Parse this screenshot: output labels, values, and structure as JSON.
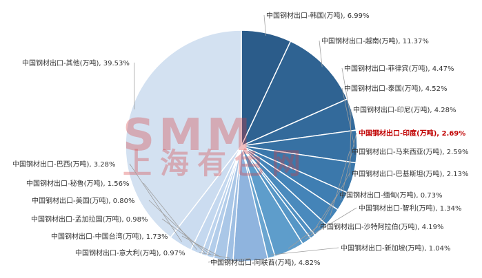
{
  "watermark": {
    "logo": "SMM",
    "text": "上海有色网"
  },
  "colors": {
    "highlight": "#c00000",
    "leader": "#9e9e9e"
  },
  "chart_data": {
    "type": "pie",
    "slices": [
      {
        "label": "中国钢材出口-韩国(万吨)",
        "value": 6.99,
        "display": "6.99%",
        "color": "#2b5c8a"
      },
      {
        "label": "中国钢材出口-越南(万吨)",
        "value": 11.37,
        "display": "11.37%",
        "color": "#2f6392"
      },
      {
        "label": "中国钢材出口-菲律宾(万吨)",
        "value": 4.47,
        "display": "4.47%",
        "color": "#336a9b"
      },
      {
        "label": "中国钢材出口-泰国(万吨)",
        "value": 4.52,
        "display": "4.52%",
        "color": "#3771a3"
      },
      {
        "label": "中国钢材出口-印尼(万吨)",
        "value": 4.28,
        "display": "4.28%",
        "color": "#3b78ab"
      },
      {
        "label": "中国钢材出口-印度(万吨)",
        "value": 2.69,
        "display": "2.69%",
        "color": "#3f7eb2",
        "highlight": true
      },
      {
        "label": "中国钢材出口-马来西亚(万吨)",
        "value": 2.59,
        "display": "2.59%",
        "color": "#4484b8"
      },
      {
        "label": "中国钢材出口-巴基斯坦(万吨)",
        "value": 2.13,
        "display": "2.13%",
        "color": "#4a8abd"
      },
      {
        "label": "中国钢材出口-缅甸(万吨)",
        "value": 0.73,
        "display": "0.73%",
        "color": "#5090c2"
      },
      {
        "label": "中国钢材出口-智利(万吨)",
        "value": 1.34,
        "display": "1.34%",
        "color": "#5696c6"
      },
      {
        "label": "中国钢材出口-沙特阿拉伯(万吨)",
        "value": 4.19,
        "display": "4.19%",
        "color": "#5e9dcb"
      },
      {
        "label": "中国钢材出口-新加坡(万吨)",
        "value": 1.04,
        "display": "1.04%",
        "color": "#6aa5d0"
      },
      {
        "label": "中国钢材出口-阿联酋(万吨)",
        "value": 4.82,
        "display": "4.82%",
        "color": "#8fb4de"
      },
      {
        "label": "中国钢材出口-意大利(万吨)",
        "value": 0.97,
        "display": "0.97%",
        "color": "#9fbfe3"
      },
      {
        "label": "中国钢材出口-中国台湾(万吨)",
        "value": 1.73,
        "display": "1.73%",
        "color": "#aac7e7"
      },
      {
        "label": "中国钢材出口-孟加拉国(万吨)",
        "value": 0.98,
        "display": "0.98%",
        "color": "#b3cdea"
      },
      {
        "label": "中国钢材出口-美国(万吨)",
        "value": 0.8,
        "display": "0.80%",
        "color": "#bcd3ed"
      },
      {
        "label": "中国钢材出口-秘鲁(万吨)",
        "value": 1.56,
        "display": "1.56%",
        "color": "#c4d8ef"
      },
      {
        "label": "中国钢材出口-巴西(万吨)",
        "value": 3.28,
        "display": "3.28%",
        "color": "#cbdcf0"
      },
      {
        "label": "中国钢材出口-其他(万吨)",
        "value": 39.53,
        "display": "39.53%",
        "color": "#d3e1f1"
      }
    ]
  }
}
